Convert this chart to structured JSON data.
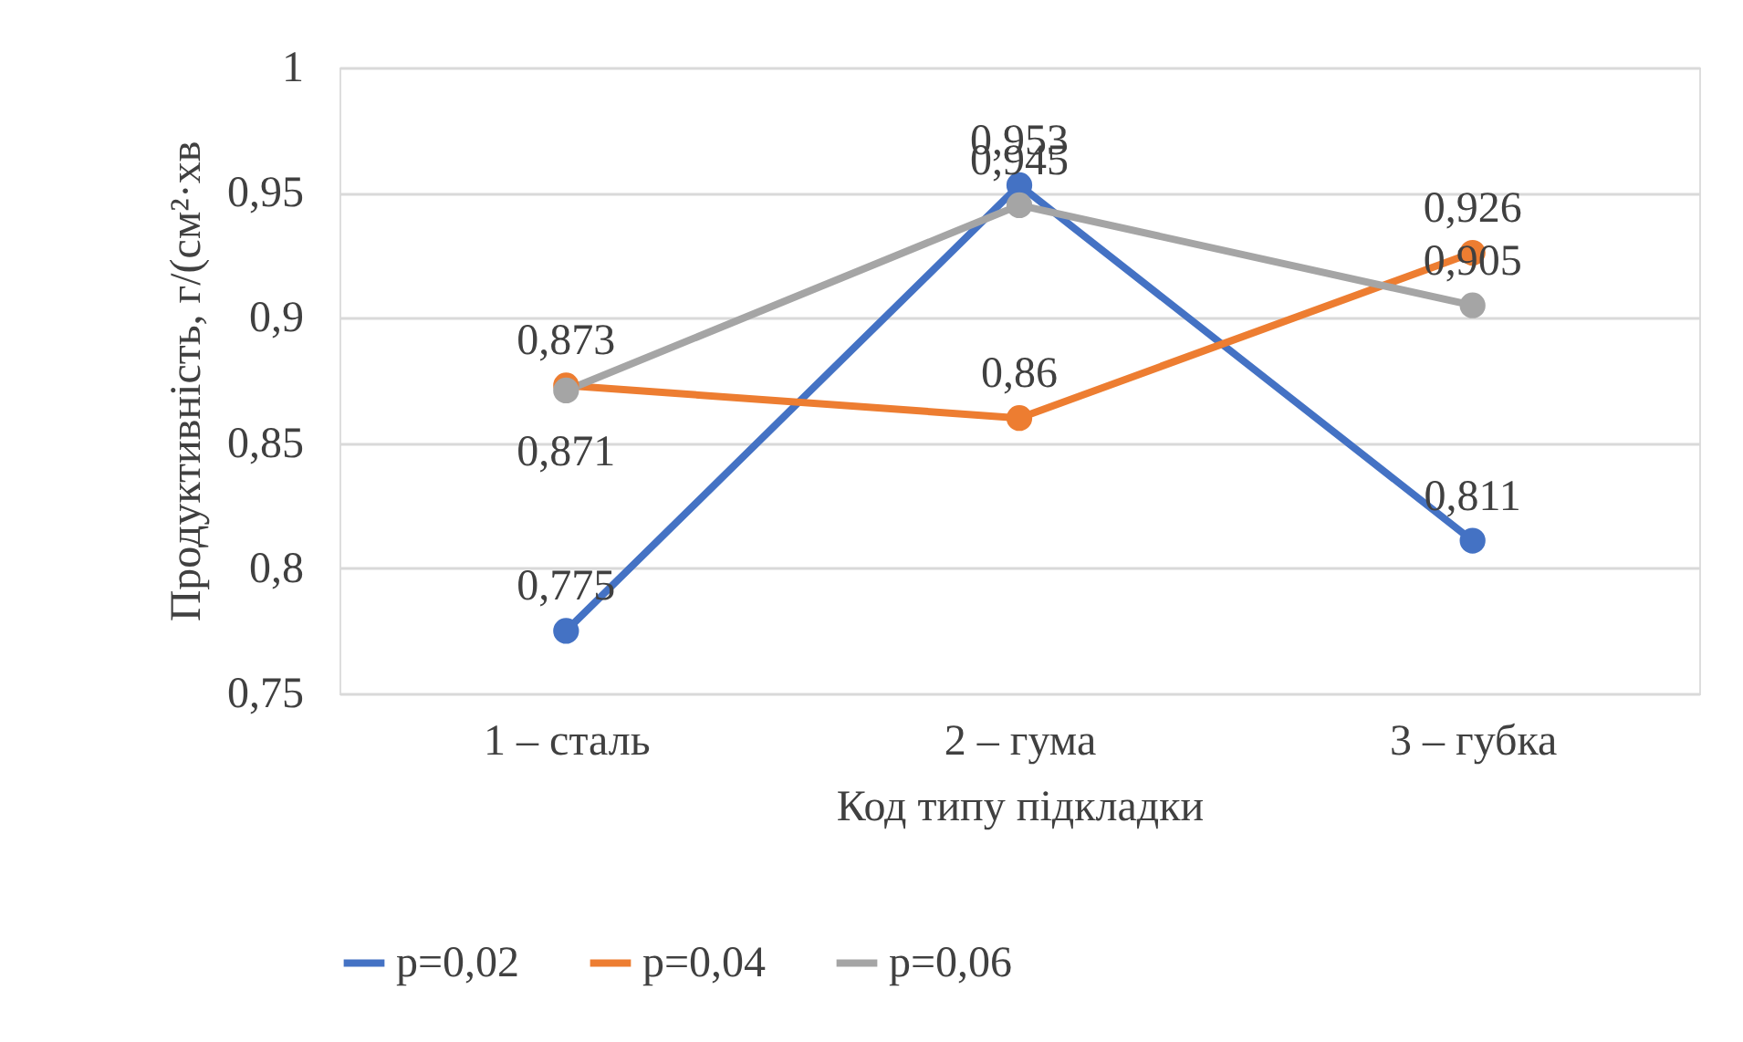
{
  "chart_data": {
    "type": "line",
    "xlabel": "Код типу підкладки",
    "ylabel": "Продуктивність, г/(см²·хв",
    "categories": [
      "1 – сталь",
      "2 – гума",
      "3 – губка"
    ],
    "series": [
      {
        "name": "p=0,02",
        "color": "#4472c4",
        "values": [
          0.775,
          0.953,
          0.811
        ],
        "value_labels": [
          "0,775",
          "0,953",
          "0,811"
        ]
      },
      {
        "name": "p=0,04",
        "color": "#ed7d31",
        "values": [
          0.873,
          0.86,
          0.926
        ],
        "value_labels": [
          "0,873",
          "0,86",
          "0,926"
        ]
      },
      {
        "name": "p=0,06",
        "color": "#a5a5a5",
        "values": [
          0.871,
          0.945,
          0.905
        ],
        "value_labels": [
          "0,871",
          "0,945",
          "0,905"
        ]
      }
    ],
    "ylim": [
      0.75,
      1
    ],
    "yticks": [
      {
        "value": 0.75,
        "label": "0,75"
      },
      {
        "value": 0.8,
        "label": "0,8"
      },
      {
        "value": 0.85,
        "label": "0,85"
      },
      {
        "value": 0.9,
        "label": "0,9"
      },
      {
        "value": 0.95,
        "label": "0,95"
      },
      {
        "value": 1,
        "label": "1"
      }
    ],
    "grid": "y",
    "legend": "bottom",
    "marker": "circle",
    "line_style": "solid"
  }
}
